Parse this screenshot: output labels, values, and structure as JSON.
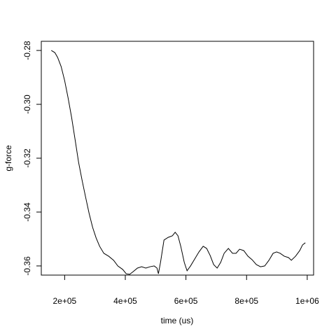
{
  "chart_data": {
    "type": "line",
    "xlabel": "time (us)",
    "ylabel": "g-force",
    "xlim": [
      123000,
      1021000
    ],
    "ylim": [
      -0.3634,
      -0.2766
    ],
    "xticks": [
      {
        "value": 200000,
        "label": "2e+05"
      },
      {
        "value": 400000,
        "label": "4e+05"
      },
      {
        "value": 600000,
        "label": "6e+05"
      },
      {
        "value": 800000,
        "label": "8e+05"
      },
      {
        "value": 1000000,
        "label": "1e+06"
      }
    ],
    "yticks": [
      -0.28,
      {
        "value": -0.3,
        "label": "-0.30"
      },
      -0.32,
      -0.34,
      -0.36
    ],
    "color": "#000000",
    "x": [
      156000,
      167700,
      176900,
      188500,
      200000,
      211500,
      223000,
      234600,
      246100,
      257700,
      269200,
      280700,
      292300,
      303800,
      315300,
      329200,
      345300,
      361500,
      375300,
      391500,
      403000,
      414500,
      426100,
      440000,
      453800,
      467700,
      481500,
      495300,
      504600,
      509200,
      516100,
      527600,
      541400,
      555300,
      564400,
      573700,
      582900,
      594500,
      603700,
      615200,
      629100,
      642900,
      656800,
      668300,
      679800,
      691400,
      702900,
      714500,
      726000,
      739900,
      753700,
      765300,
      776800,
      790600,
      804500,
      818300,
      832100,
      846000,
      859800,
      873700,
      887500,
      899100,
      910600,
      924500,
      938300,
      947600,
      961400,
      975300,
      984500,
      993800
    ],
    "values": [
      -0.28,
      -0.2808,
      -0.2826,
      -0.286,
      -0.2912,
      -0.2977,
      -0.3049,
      -0.3132,
      -0.3216,
      -0.3283,
      -0.3345,
      -0.3405,
      -0.3457,
      -0.3496,
      -0.3527,
      -0.3553,
      -0.3564,
      -0.3579,
      -0.36,
      -0.3613,
      -0.3629,
      -0.3631,
      -0.3621,
      -0.3608,
      -0.3603,
      -0.3608,
      -0.3603,
      -0.36,
      -0.3608,
      -0.3629,
      -0.3587,
      -0.3504,
      -0.3494,
      -0.3488,
      -0.3475,
      -0.3488,
      -0.3527,
      -0.3587,
      -0.3618,
      -0.36,
      -0.3574,
      -0.3548,
      -0.3527,
      -0.3535,
      -0.3561,
      -0.3595,
      -0.3608,
      -0.3587,
      -0.3553,
      -0.3535,
      -0.3553,
      -0.3553,
      -0.3538,
      -0.3543,
      -0.3564,
      -0.3577,
      -0.3595,
      -0.3603,
      -0.36,
      -0.3579,
      -0.3553,
      -0.3548,
      -0.3553,
      -0.3564,
      -0.3569,
      -0.3579,
      -0.3564,
      -0.3543,
      -0.3522,
      -0.3514
    ]
  }
}
